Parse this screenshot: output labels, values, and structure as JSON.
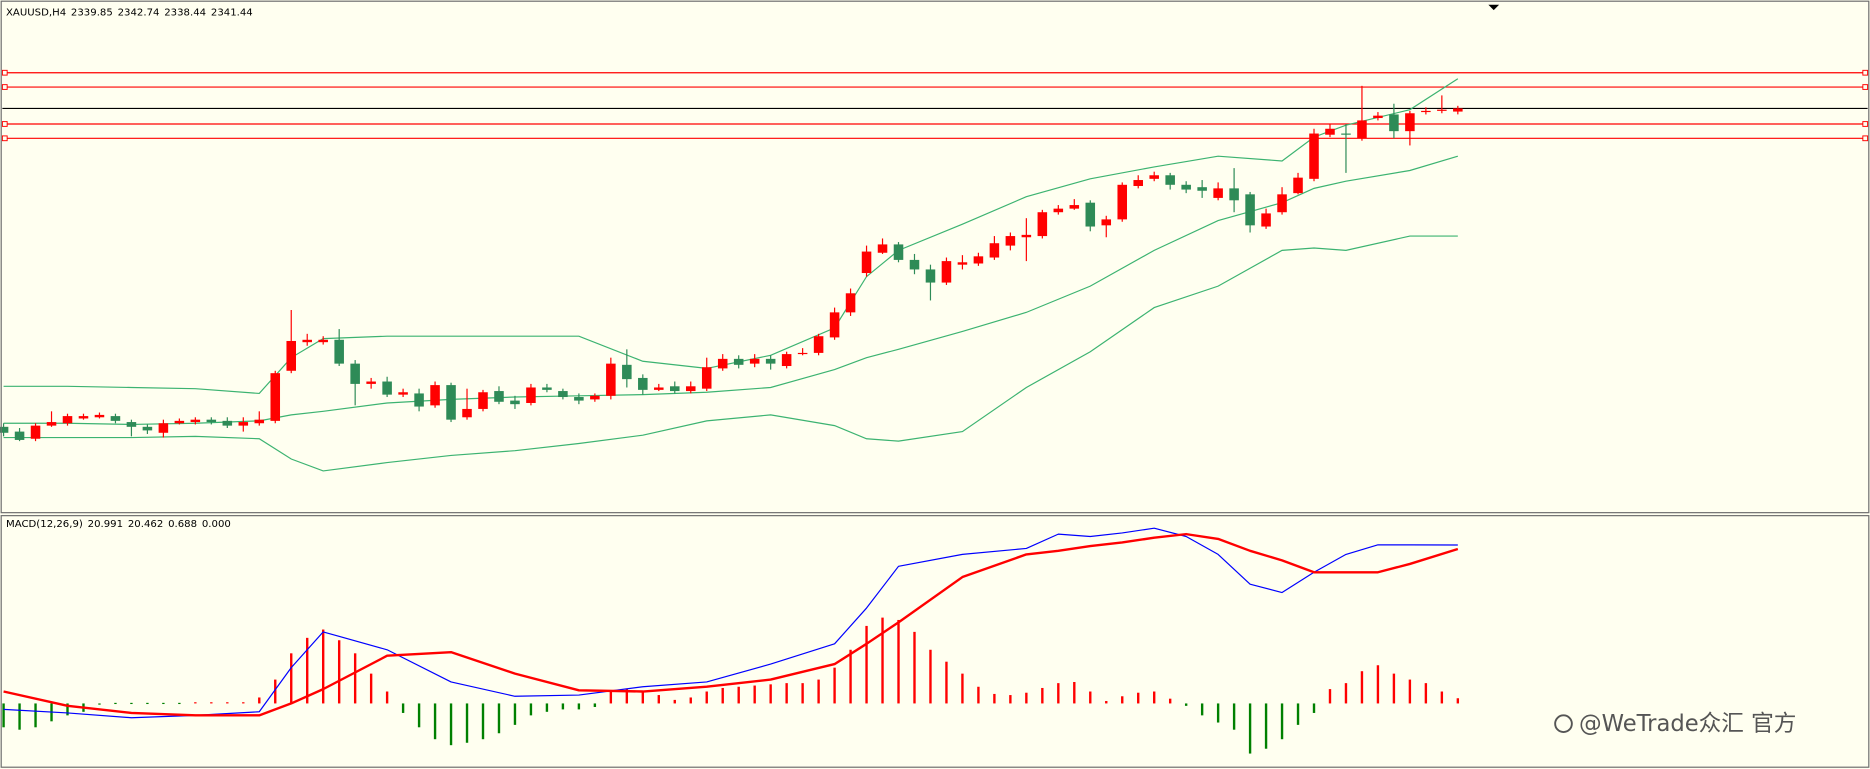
{
  "chart_data": [
    {
      "type": "candlestick",
      "symbol": "XAUUSD,H4",
      "ylim": [
        2138,
        2394.2
      ],
      "up_color": "#ff0000",
      "down_color": "#2e8b57",
      "price_line_color": "#000000",
      "ohlc": [
        [
          2181.2,
          2183.0,
          2176.4,
          2178.2
        ],
        [
          2178.8,
          2180.6,
          2174.0,
          2174.6
        ],
        [
          2175.2,
          2183.0,
          2174.0,
          2181.8
        ],
        [
          2181.8,
          2189.0,
          2181.2,
          2183.6
        ],
        [
          2183.0,
          2187.8,
          2181.8,
          2186.6
        ],
        [
          2185.4,
          2187.8,
          2184.8,
          2186.6
        ],
        [
          2186.0,
          2188.4,
          2185.4,
          2187.2
        ],
        [
          2186.6,
          2187.8,
          2183.0,
          2184.2
        ],
        [
          2183.6,
          2184.8,
          2176.4,
          2181.2
        ],
        [
          2181.2,
          2182.4,
          2177.6,
          2179.4
        ],
        [
          2178.2,
          2184.8,
          2175.8,
          2183.0
        ],
        [
          2183.0,
          2185.4,
          2182.4,
          2184.2
        ],
        [
          2183.6,
          2186.0,
          2182.4,
          2184.8
        ],
        [
          2184.8,
          2186.0,
          2182.4,
          2183.6
        ],
        [
          2184.2,
          2186.0,
          2180.6,
          2181.8
        ],
        [
          2181.8,
          2186.0,
          2178.8,
          2183.6
        ],
        [
          2183.0,
          2189.0,
          2181.8,
          2184.8
        ],
        [
          2184.2,
          2209.4,
          2183.0,
          2208.2
        ],
        [
          2209.4,
          2240.0,
          2208.2,
          2224.4
        ],
        [
          2223.8,
          2228.0,
          2222.0,
          2225.0
        ],
        [
          2223.8,
          2226.8,
          2222.6,
          2225.0
        ],
        [
          2225.0,
          2230.4,
          2211.8,
          2213.0
        ],
        [
          2213.0,
          2214.8,
          2192.0,
          2202.8
        ],
        [
          2202.8,
          2205.8,
          2200.4,
          2204.0
        ],
        [
          2204.0,
          2206.4,
          2196.2,
          2197.4
        ],
        [
          2197.4,
          2200.4,
          2196.2,
          2198.6
        ],
        [
          2198.0,
          2200.4,
          2189.0,
          2191.4
        ],
        [
          2192.0,
          2204.0,
          2190.8,
          2202.2
        ],
        [
          2202.2,
          2203.4,
          2183.6,
          2184.8
        ],
        [
          2186.0,
          2200.4,
          2184.8,
          2190.2
        ],
        [
          2190.2,
          2199.8,
          2189.0,
          2198.6
        ],
        [
          2199.2,
          2201.6,
          2192.6,
          2193.8
        ],
        [
          2194.4,
          2196.8,
          2190.2,
          2192.6
        ],
        [
          2193.2,
          2202.8,
          2192.0,
          2201.0
        ],
        [
          2201.0,
          2202.8,
          2198.6,
          2199.8
        ],
        [
          2199.2,
          2200.4,
          2195.0,
          2196.2
        ],
        [
          2196.2,
          2198.0,
          2192.6,
          2194.4
        ],
        [
          2195.0,
          2198.0,
          2193.8,
          2196.8
        ],
        [
          2196.8,
          2216.0,
          2195.0,
          2213.0
        ],
        [
          2212.4,
          2220.2,
          2201.0,
          2205.2
        ],
        [
          2205.8,
          2207.6,
          2197.4,
          2199.8
        ],
        [
          2199.8,
          2202.8,
          2199.2,
          2201.0
        ],
        [
          2201.6,
          2204.0,
          2198.0,
          2199.2
        ],
        [
          2199.2,
          2204.0,
          2198.0,
          2201.6
        ],
        [
          2200.4,
          2216.0,
          2199.2,
          2211.2
        ],
        [
          2210.6,
          2217.8,
          2209.4,
          2215.4
        ],
        [
          2215.4,
          2217.2,
          2210.6,
          2212.4
        ],
        [
          2213.0,
          2217.8,
          2211.2,
          2215.4
        ],
        [
          2215.4,
          2217.2,
          2210.0,
          2213.0
        ],
        [
          2211.8,
          2219.0,
          2210.6,
          2217.8
        ],
        [
          2217.8,
          2220.8,
          2217.2,
          2218.4
        ],
        [
          2218.4,
          2228.0,
          2217.2,
          2226.8
        ],
        [
          2226.2,
          2241.2,
          2225.0,
          2238.8
        ],
        [
          2238.8,
          2250.8,
          2237.0,
          2248.4
        ],
        [
          2258.6,
          2272.4,
          2256.8,
          2269.4
        ],
        [
          2268.8,
          2276.0,
          2268.2,
          2273.0
        ],
        [
          2273.0,
          2274.2,
          2264.0,
          2265.2
        ],
        [
          2265.2,
          2268.2,
          2258.0,
          2260.4
        ],
        [
          2260.4,
          2262.8,
          2244.8,
          2253.8
        ],
        [
          2253.8,
          2266.4,
          2252.6,
          2264.6
        ],
        [
          2262.8,
          2267.6,
          2260.4,
          2264.0
        ],
        [
          2263.4,
          2268.8,
          2262.2,
          2267.0
        ],
        [
          2266.4,
          2277.2,
          2265.2,
          2273.6
        ],
        [
          2272.4,
          2279.0,
          2270.0,
          2277.2
        ],
        [
          2276.6,
          2286.2,
          2264.6,
          2277.8
        ],
        [
          2277.2,
          2290.4,
          2276.0,
          2289.2
        ],
        [
          2289.2,
          2292.8,
          2288.0,
          2291.0
        ],
        [
          2291.0,
          2295.8,
          2290.4,
          2292.8
        ],
        [
          2294.0,
          2295.2,
          2279.6,
          2282.0
        ],
        [
          2282.6,
          2287.4,
          2276.6,
          2285.6
        ],
        [
          2285.6,
          2304.2,
          2284.4,
          2303.0
        ],
        [
          2302.4,
          2307.8,
          2301.2,
          2305.4
        ],
        [
          2306.0,
          2309.6,
          2304.8,
          2307.8
        ],
        [
          2307.8,
          2309.0,
          2300.6,
          2303.0
        ],
        [
          2303.0,
          2304.8,
          2298.8,
          2300.6
        ],
        [
          2301.8,
          2305.4,
          2296.4,
          2300.0
        ],
        [
          2296.4,
          2304.2,
          2295.2,
          2301.2
        ],
        [
          2301.2,
          2311.4,
          2289.2,
          2295.2
        ],
        [
          2298.2,
          2299.4,
          2279.0,
          2282.6
        ],
        [
          2282.0,
          2291.0,
          2280.8,
          2288.6
        ],
        [
          2289.2,
          2301.8,
          2288.0,
          2298.2
        ],
        [
          2298.8,
          2309.0,
          2298.2,
          2306.6
        ],
        [
          2306.0,
          2331.2,
          2304.8,
          2328.8
        ],
        [
          2328.2,
          2333.6,
          2327.0,
          2331.2
        ],
        [
          2328.8,
          2333.6,
          2309.0,
          2328.2
        ],
        [
          2326.4,
          2352.8,
          2325.2,
          2335.4
        ],
        [
          2336.6,
          2339.6,
          2335.4,
          2337.8
        ],
        [
          2338.4,
          2343.8,
          2326.4,
          2330.0
        ],
        [
          2330.0,
          2340.2,
          2322.8,
          2339.0
        ],
        [
          2339.6,
          2342.0,
          2338.4,
          2340.2
        ],
        [
          2340.2,
          2348.0,
          2339.0,
          2340.8
        ],
        [
          2339.85,
          2342.74,
          2338.44,
          2341.44
        ]
      ],
      "bands": {
        "color": "#3cb371",
        "x": [
          0,
          4,
          8,
          12,
          16,
          18,
          20,
          24,
          28,
          32,
          36,
          40,
          44,
          48,
          52,
          54,
          56,
          60,
          64,
          68,
          72,
          76,
          80,
          82,
          84,
          88,
          91
        ],
        "upper": [
          2201.6,
          2201.6,
          2201.0,
          2200.4,
          2198.0,
          2216.0,
          2225.6,
          2226.8,
          2226.8,
          2226.8,
          2226.8,
          2214.2,
          2210.6,
          2217.2,
          2231.0,
          2256.8,
          2270.0,
          2283.2,
          2297.0,
          2306.0,
          2312.0,
          2317.4,
          2315.0,
          2327.0,
          2333.0,
          2340.8,
          2356.4
        ],
        "middle": [
          2183.0,
          2183.0,
          2182.4,
          2183.0,
          2184.2,
          2187.2,
          2189.0,
          2193.2,
          2195.0,
          2196.2,
          2196.8,
          2197.4,
          2198.6,
          2201.0,
          2210.0,
          2216.0,
          2220.2,
          2229.2,
          2238.8,
          2252.0,
          2270.0,
          2285.0,
          2294.0,
          2301.2,
          2304.8,
          2310.2,
          2317.4
        ],
        "lower": [
          2175.8,
          2175.8,
          2175.8,
          2176.4,
          2175.2,
          2165.0,
          2159.0,
          2163.2,
          2166.8,
          2169.2,
          2172.8,
          2177.0,
          2184.2,
          2187.2,
          2181.8,
          2175.2,
          2174.0,
          2178.8,
          2201.0,
          2219.0,
          2241.2,
          2252.0,
          2270.0,
          2271.2,
          2270.0,
          2277.2,
          2277.2
        ]
      },
      "levels": [
        {
          "value": 2359.4,
          "color": "#ff0000"
        },
        {
          "value": 2352.2,
          "color": "#ff0000"
        },
        {
          "value": 2333.6,
          "color": "#ff0000"
        },
        {
          "value": 2326.4,
          "color": "#ff0000"
        }
      ]
    },
    {
      "type": "macd",
      "label": "MACD(12,26,9)",
      "ylim": [
        -8.37,
        24.8
      ],
      "x": [
        0,
        4,
        8,
        12,
        16,
        18,
        20,
        24,
        28,
        32,
        36,
        40,
        44,
        48,
        52,
        54,
        56,
        60,
        64,
        66,
        68,
        70,
        72,
        74,
        76,
        78,
        80,
        82,
        84,
        86,
        88,
        91
      ],
      "main": {
        "color": "#0000ff",
        "values": [
          -0.79,
          -1.26,
          -1.9,
          -1.58,
          -1.11,
          4.74,
          9.48,
          7.11,
          2.84,
          0.95,
          1.11,
          2.21,
          2.84,
          5.21,
          7.9,
          12.64,
          18.17,
          19.75,
          20.54,
          22.43,
          22.12,
          22.59,
          23.22,
          22.12,
          19.75,
          15.8,
          14.69,
          17.38,
          19.75,
          21.01,
          21.01,
          20.991
        ]
      },
      "signal": {
        "color": "#ff0000",
        "values": [
          1.58,
          -0.32,
          -1.26,
          -1.58,
          -1.58,
          0,
          1.9,
          6.32,
          6.79,
          3.95,
          1.74,
          1.58,
          2.21,
          3.16,
          5.21,
          7.9,
          10.74,
          16.75,
          19.75,
          20.22,
          20.85,
          21.33,
          21.96,
          22.43,
          21.8,
          20.22,
          18.96,
          17.38,
          17.38,
          17.38,
          18.48,
          20.462
        ]
      },
      "histogram": {
        "up_color": "#ff0000",
        "down_color": "#008000",
        "values": [
          -3.16,
          -3.48,
          -3.16,
          -2.37,
          -1.58,
          -1.11,
          -0.16,
          -0.08,
          -0.08,
          -0.08,
          -0.08,
          -0.08,
          0.08,
          0.08,
          0.08,
          0.08,
          0.79,
          3.16,
          6.64,
          8.69,
          9.79,
          8.37,
          6.64,
          3.95,
          1.58,
          -1.26,
          -3.16,
          -4.74,
          -5.53,
          -5.21,
          -4.74,
          -3.95,
          -2.84,
          -1.58,
          -1.11,
          -0.79,
          -0.79,
          -0.47,
          1.58,
          1.9,
          1.58,
          1.11,
          0.47,
          0.79,
          1.58,
          2.05,
          2.21,
          2.37,
          2.53,
          2.69,
          2.69,
          3.16,
          4.74,
          7.11,
          10.27,
          11.37,
          11.06,
          9.48,
          7.11,
          5.53,
          3.95,
          2.21,
          1.26,
          1.11,
          1.42,
          2.05,
          2.69,
          2.84,
          1.58,
          0.32,
          0.95,
          1.42,
          1.58,
          0.63,
          -0.32,
          -1.58,
          -2.53,
          -3.48,
          -6.64,
          -6.0,
          -4.74,
          -2.84,
          -1.26,
          1.9,
          2.69,
          4.27,
          5.06,
          3.95,
          3.16,
          2.69,
          1.58,
          0.688
        ]
      },
      "level": {
        "value": 0,
        "label": "0.000"
      }
    }
  ],
  "watermark": "@WeTrade众汇 官方"
}
